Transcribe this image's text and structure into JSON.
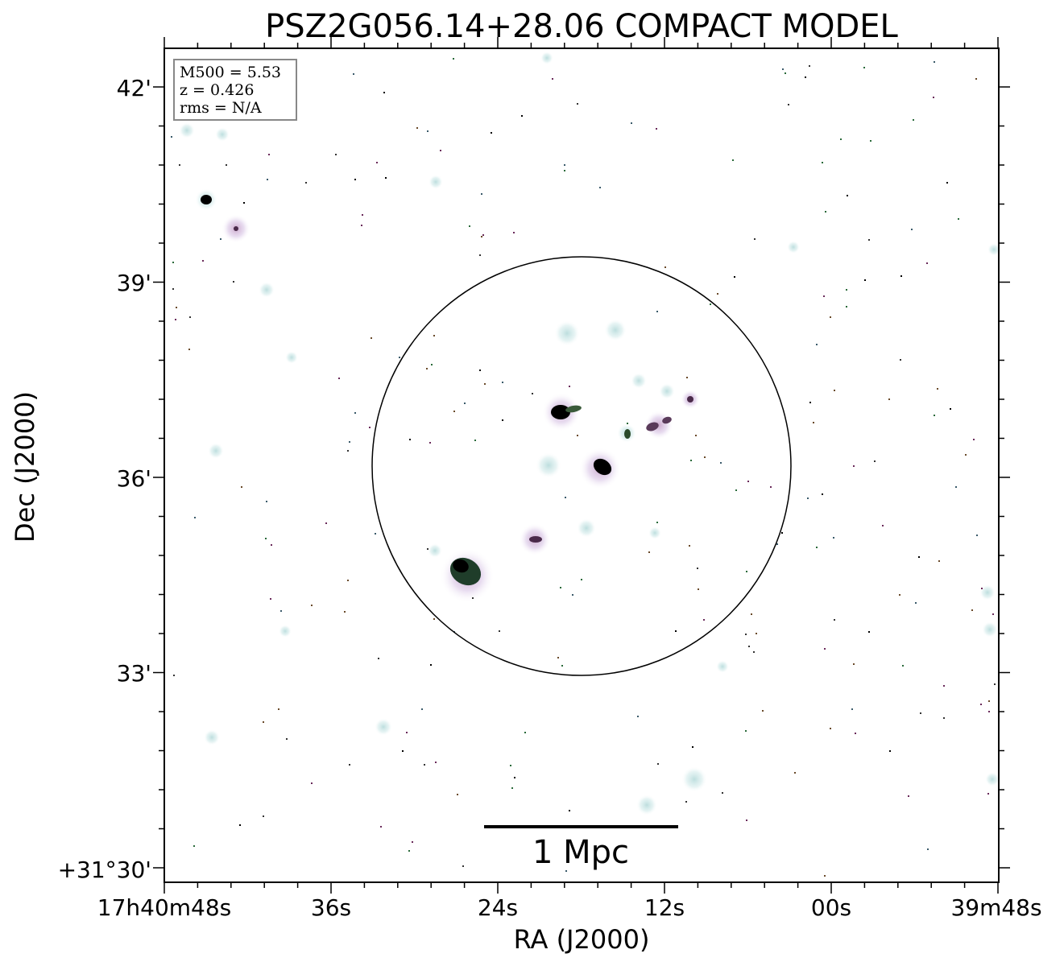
{
  "title": "PSZ2G056.14+28.06 COMPACT MODEL",
  "info_box": {
    "m500": "M500 = 5.53",
    "redshift": "z = 0.426",
    "rms": "rms = N/A"
  },
  "axes": {
    "xlabel": "RA (J2000)",
    "ylabel": "Dec (J2000)",
    "x_ticks": [
      "17h40m48s",
      "36s",
      "24s",
      "12s",
      "00s",
      "39m48s"
    ],
    "y_ticks": [
      "+31°30'",
      "33'",
      "36'",
      "39'",
      "42'"
    ]
  },
  "scale_bar": {
    "label": "1 Mpc"
  },
  "colors": {
    "background": "#ffffff",
    "contours": "#000000",
    "halo": "#cfe7e6"
  }
}
